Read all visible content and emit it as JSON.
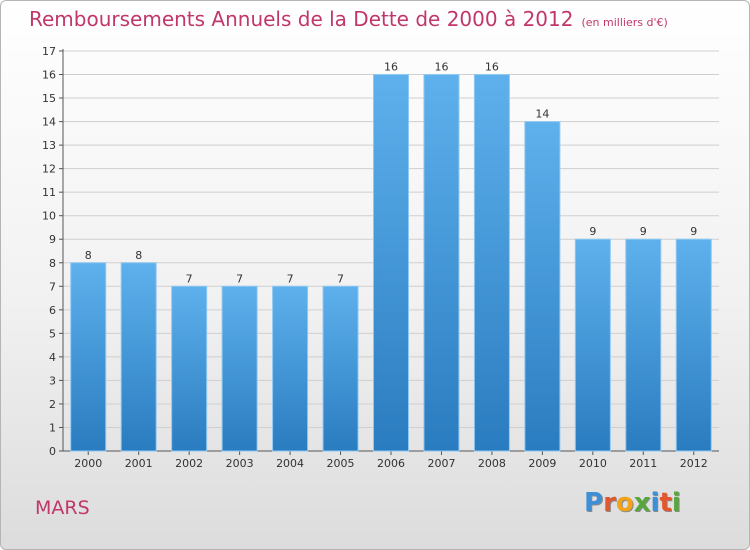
{
  "title": "Remboursements Annuels de la Dette de 2000 à 2012",
  "subtitle": "(en milliers d'€)",
  "town": "MARS",
  "logo": {
    "text": "Proxiti",
    "letters": [
      {
        "ch": "P",
        "color": "#3f8fd6"
      },
      {
        "ch": "r",
        "color": "#e4572e"
      },
      {
        "ch": "o",
        "color": "#f1a31b"
      },
      {
        "ch": "x",
        "color": "#56a83c"
      },
      {
        "ch": "i",
        "color": "#3f8fd6"
      },
      {
        "ch": "t",
        "color": "#e4572e"
      },
      {
        "ch": "i",
        "color": "#56a83c"
      }
    ]
  },
  "colors": {
    "title": "#c1366b",
    "bar_top": "#5eb1ec",
    "bar_bottom": "#2a7cc0",
    "grid": "#cfcfcf",
    "text": "#333333"
  },
  "chart_data": {
    "type": "bar",
    "categories": [
      "2000",
      "2001",
      "2002",
      "2003",
      "2004",
      "2005",
      "2006",
      "2007",
      "2008",
      "2009",
      "2010",
      "2011",
      "2012"
    ],
    "values": [
      8,
      8,
      7,
      7,
      7,
      7,
      16,
      16,
      16,
      14,
      9,
      9,
      9
    ],
    "ylim": [
      0,
      17
    ],
    "yticks": [
      0,
      1,
      2,
      3,
      4,
      5,
      6,
      7,
      8,
      9,
      10,
      11,
      12,
      13,
      14,
      15,
      16,
      17
    ],
    "grid": true,
    "data_labels": true
  }
}
